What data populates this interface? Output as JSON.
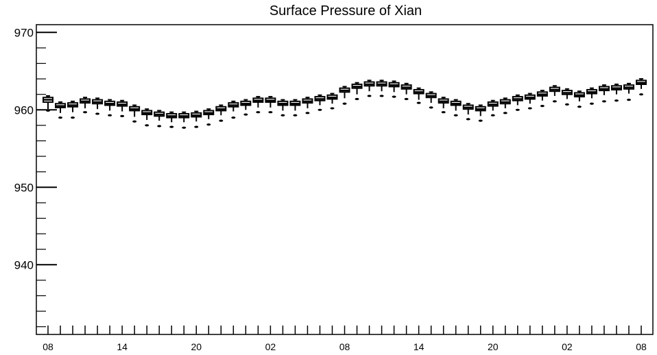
{
  "chart_data": {
    "type": "boxplot",
    "title": "Surface Pressure of Xian",
    "xlabel": "",
    "ylabel": "",
    "ylim": [
      931,
      971
    ],
    "yticks": [
      940,
      950,
      960,
      970
    ],
    "xticks": [
      {
        "index": 0,
        "label": "08"
      },
      {
        "index": 6,
        "label": "14"
      },
      {
        "index": 12,
        "label": "20"
      },
      {
        "index": 18,
        "label": "02"
      },
      {
        "index": 24,
        "label": "08"
      },
      {
        "index": 30,
        "label": "14"
      },
      {
        "index": 36,
        "label": "20"
      },
      {
        "index": 42,
        "label": "02"
      },
      {
        "index": 48,
        "label": "08"
      }
    ],
    "num_positions": 49,
    "grid": false,
    "series": [
      {
        "median": [
          961.3,
          960.5,
          960.6,
          961.1,
          961.0,
          960.8,
          960.7,
          960.1,
          959.6,
          959.4,
          959.2,
          959.2,
          959.3,
          959.6,
          960.1,
          960.6,
          960.8,
          961.2,
          961.2,
          960.8,
          960.8,
          961.1,
          961.4,
          961.6,
          962.5,
          963.0,
          963.3,
          963.3,
          963.2,
          962.9,
          962.3,
          961.8,
          961.1,
          960.8,
          960.3,
          960.1,
          960.7,
          961.0,
          961.4,
          961.6,
          962.0,
          962.6,
          962.2,
          961.9,
          962.3,
          962.7,
          962.8,
          962.9,
          963.5
        ],
        "q1": [
          961.0,
          960.3,
          960.4,
          960.9,
          960.8,
          960.6,
          960.5,
          959.9,
          959.4,
          959.2,
          959.0,
          959.0,
          959.1,
          959.4,
          959.9,
          960.4,
          960.6,
          961.0,
          961.0,
          960.6,
          960.6,
          960.9,
          961.2,
          961.4,
          962.3,
          962.8,
          963.1,
          963.1,
          963.0,
          962.7,
          962.1,
          961.6,
          960.9,
          960.6,
          960.1,
          959.9,
          960.5,
          960.8,
          961.2,
          961.4,
          961.8,
          962.4,
          962.0,
          961.7,
          962.1,
          962.5,
          962.6,
          962.7,
          963.3
        ],
        "q3": [
          961.6,
          960.8,
          960.9,
          961.4,
          961.3,
          961.1,
          961.0,
          960.4,
          959.9,
          959.7,
          959.5,
          959.5,
          959.6,
          959.9,
          960.4,
          960.9,
          961.1,
          961.5,
          961.5,
          961.1,
          961.1,
          961.4,
          961.7,
          961.9,
          962.8,
          963.3,
          963.6,
          963.6,
          963.5,
          963.2,
          962.6,
          962.1,
          961.4,
          961.1,
          960.6,
          960.4,
          961.0,
          961.3,
          961.7,
          961.9,
          962.3,
          962.9,
          962.5,
          962.2,
          962.6,
          963.0,
          963.1,
          963.2,
          963.8
        ],
        "whisker_low": [
          960.1,
          959.6,
          959.7,
          960.2,
          960.1,
          959.9,
          959.8,
          959.1,
          958.7,
          958.6,
          958.4,
          958.4,
          958.5,
          958.8,
          959.3,
          959.8,
          960.0,
          960.3,
          960.3,
          959.9,
          959.9,
          960.2,
          960.6,
          960.8,
          961.5,
          962.0,
          962.4,
          962.4,
          962.3,
          962.0,
          961.3,
          960.9,
          960.2,
          959.9,
          959.4,
          959.2,
          959.9,
          960.2,
          960.6,
          960.8,
          961.2,
          961.8,
          961.4,
          961.1,
          961.5,
          961.9,
          962.0,
          962.1,
          962.7
        ],
        "whisker_high": [
          961.8,
          961.0,
          961.1,
          961.6,
          961.5,
          961.3,
          961.2,
          960.6,
          960.1,
          959.9,
          959.7,
          959.7,
          959.8,
          960.1,
          960.6,
          961.1,
          961.3,
          961.7,
          961.7,
          961.3,
          961.3,
          961.6,
          961.9,
          962.1,
          963.0,
          963.5,
          963.8,
          963.8,
          963.7,
          963.4,
          962.8,
          962.3,
          961.6,
          961.3,
          960.8,
          960.6,
          961.2,
          961.5,
          961.9,
          962.1,
          962.5,
          963.1,
          962.7,
          962.4,
          962.8,
          963.2,
          963.3,
          963.4,
          964.0
        ],
        "outlier": [
          959.9,
          959.0,
          959.0,
          959.7,
          959.5,
          959.3,
          959.2,
          958.5,
          958.0,
          957.9,
          957.8,
          957.7,
          957.8,
          958.1,
          958.6,
          959.0,
          959.4,
          959.7,
          959.7,
          959.3,
          959.3,
          959.6,
          960.0,
          960.2,
          960.8,
          961.4,
          961.8,
          961.8,
          961.7,
          961.4,
          960.9,
          960.3,
          959.7,
          959.3,
          958.8,
          958.6,
          959.3,
          959.6,
          960.0,
          960.2,
          960.5,
          961.1,
          960.7,
          960.4,
          960.8,
          961.1,
          961.2,
          961.3,
          962.0
        ]
      }
    ]
  }
}
